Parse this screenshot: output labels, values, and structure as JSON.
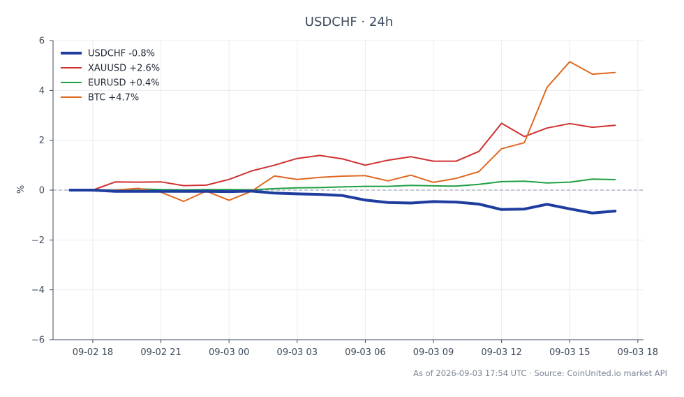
{
  "chart_data": {
    "type": "line",
    "title": "USDCHF · 24h",
    "xlabel": "",
    "ylabel": "%",
    "ylim": [
      -6,
      6
    ],
    "xlim": [
      "2026-09-02 16:15",
      "2026-09-03 18:15"
    ],
    "yticks": [
      -6,
      -4,
      -2,
      0,
      2,
      4,
      6
    ],
    "ytick_labels": [
      "−6",
      "−4",
      "−2",
      "0",
      "2",
      "4",
      "6"
    ],
    "xticks": [
      "2026-09-02 18:00",
      "2026-09-02 21:00",
      "2026-09-03 00:00",
      "2026-09-03 03:00",
      "2026-09-03 06:00",
      "2026-09-03 09:00",
      "2026-09-03 12:00",
      "2026-09-03 15:00",
      "2026-09-03 18:00"
    ],
    "xtick_labels": [
      "09-02 18",
      "09-02 21",
      "09-03 00",
      "09-03 03",
      "09-03 06",
      "09-03 09",
      "09-03 12",
      "09-03 15",
      "09-03 18"
    ],
    "grid": true,
    "zero_line": true,
    "legend_position": "top-left",
    "x": [
      "2026-09-02 17:00",
      "2026-09-02 18:00",
      "2026-09-02 19:00",
      "2026-09-02 20:00",
      "2026-09-02 21:00",
      "2026-09-02 22:00",
      "2026-09-02 23:00",
      "2026-09-03 00:00",
      "2026-09-03 01:00",
      "2026-09-03 02:00",
      "2026-09-03 03:00",
      "2026-09-03 04:00",
      "2026-09-03 05:00",
      "2026-09-03 06:00",
      "2026-09-03 07:00",
      "2026-09-03 08:00",
      "2026-09-03 09:00",
      "2026-09-03 10:00",
      "2026-09-03 11:00",
      "2026-09-03 12:00",
      "2026-09-03 13:00",
      "2026-09-03 14:00",
      "2026-09-03 15:00",
      "2026-09-03 16:00",
      "2026-09-03 17:00"
    ],
    "series": [
      {
        "name": "USDCHF -0.8%",
        "color": "#1f3d9e",
        "width": 4,
        "values": [
          0.0,
          0.0,
          -0.05,
          -0.05,
          -0.05,
          -0.05,
          -0.05,
          -0.06,
          -0.04,
          -0.12,
          -0.15,
          -0.17,
          -0.22,
          -0.4,
          -0.5,
          -0.52,
          -0.46,
          -0.48,
          -0.56,
          -0.78,
          -0.76,
          -0.57,
          -0.75,
          -0.92,
          -0.84
        ]
      },
      {
        "name": "XAUUSD +2.6%",
        "color": "#d03030",
        "width": 2,
        "values": [
          0.0,
          0.0,
          0.33,
          0.32,
          0.33,
          0.18,
          0.2,
          0.43,
          0.77,
          1.0,
          1.27,
          1.39,
          1.25,
          1.0,
          1.2,
          1.34,
          1.16,
          1.16,
          1.55,
          2.68,
          2.15,
          2.49,
          2.67,
          2.52,
          2.6
        ]
      },
      {
        "name": "EURUSD +0.4%",
        "color": "#1fa043",
        "width": 2,
        "values": [
          0.0,
          0.0,
          0.01,
          0.05,
          0.02,
          0.01,
          0.02,
          0.02,
          0.01,
          0.06,
          0.09,
          0.1,
          0.13,
          0.15,
          0.15,
          0.19,
          0.17,
          0.16,
          0.23,
          0.34,
          0.36,
          0.29,
          0.32,
          0.44,
          0.42
        ]
      },
      {
        "name": "BTC +4.7%",
        "color": "#e06820",
        "width": 2,
        "values": [
          0.02,
          -0.03,
          0.0,
          0.07,
          -0.08,
          -0.45,
          -0.04,
          -0.41,
          -0.04,
          0.57,
          0.43,
          0.51,
          0.56,
          0.58,
          0.37,
          0.6,
          0.31,
          0.47,
          0.74,
          1.66,
          1.9,
          4.12,
          5.15,
          4.65,
          4.72
        ]
      }
    ],
    "footer": "As of 2026-09-03 17:54 UTC · Source: CoinUnited.io market API"
  }
}
